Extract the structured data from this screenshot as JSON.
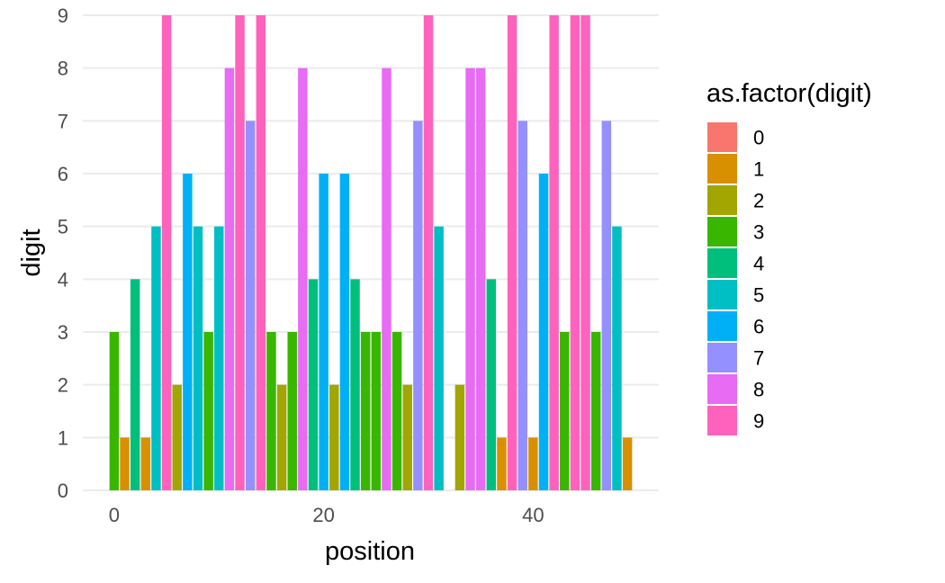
{
  "chart_data": {
    "type": "bar",
    "xlabel": "position",
    "ylabel": "digit",
    "xlim": [
      -3,
      52
    ],
    "ylim": [
      0,
      9
    ],
    "x_ticks": [
      0,
      20,
      40
    ],
    "y_ticks": [
      0,
      1,
      2,
      3,
      4,
      5,
      6,
      7,
      8,
      9
    ],
    "grid": "major",
    "legend": {
      "title": "as.factor(digit)",
      "position": "right",
      "entries": [
        {
          "label": "0",
          "color": "#F8766D"
        },
        {
          "label": "1",
          "color": "#D89000"
        },
        {
          "label": "2",
          "color": "#A3A500"
        },
        {
          "label": "3",
          "color": "#39B600"
        },
        {
          "label": "4",
          "color": "#00BF7D"
        },
        {
          "label": "5",
          "color": "#00BFC4"
        },
        {
          "label": "6",
          "color": "#00B0F6"
        },
        {
          "label": "7",
          "color": "#9590FF"
        },
        {
          "label": "8",
          "color": "#E76BF3"
        },
        {
          "label": "9",
          "color": "#FF62BC"
        }
      ]
    },
    "x": [
      0,
      1,
      2,
      3,
      4,
      5,
      6,
      7,
      8,
      9,
      10,
      11,
      12,
      13,
      14,
      15,
      16,
      17,
      18,
      19,
      20,
      21,
      22,
      23,
      24,
      25,
      26,
      27,
      28,
      29,
      30,
      31,
      32,
      33,
      34,
      35,
      36,
      37,
      38,
      39,
      40,
      41,
      42,
      43,
      44,
      45,
      46,
      47,
      48,
      49
    ],
    "values": [
      3,
      1,
      4,
      1,
      5,
      9,
      2,
      6,
      5,
      3,
      5,
      8,
      9,
      7,
      9,
      3,
      2,
      3,
      8,
      4,
      6,
      2,
      6,
      4,
      3,
      3,
      8,
      3,
      2,
      7,
      9,
      5,
      0,
      2,
      8,
      8,
      4,
      1,
      9,
      7,
      1,
      6,
      9,
      3,
      9,
      9,
      3,
      7,
      5,
      1
    ]
  }
}
